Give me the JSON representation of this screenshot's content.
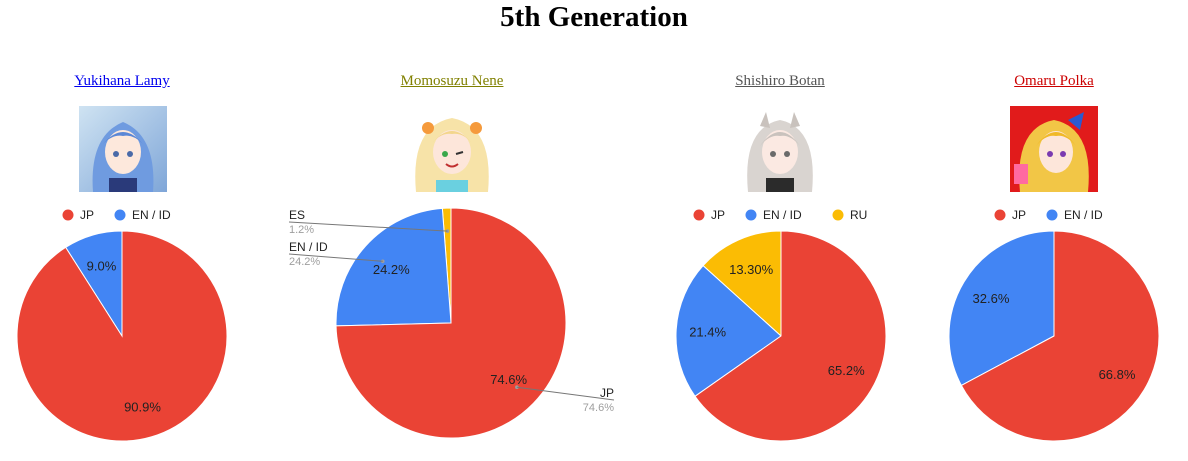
{
  "page": {
    "title": "5th Generation"
  },
  "colors": {
    "JP": "#ea4335",
    "EN / ID": "#4285f4",
    "ES": "#fbbc04",
    "RU": "#fbbc04"
  },
  "members": [
    {
      "name": "Yukihana Lamy",
      "name_color": "#0000ee",
      "avatar_icon": "avatar-icon"
    },
    {
      "name": "Momosuzu Nene",
      "name_color": "#808000",
      "avatar_icon": "avatar-icon"
    },
    {
      "name": "Shishiro Botan",
      "name_color": "#555555",
      "avatar_icon": "avatar-icon"
    },
    {
      "name": "Omaru Polka",
      "name_color": "#cc0000",
      "avatar_icon": "avatar-icon"
    }
  ],
  "chart_data": [
    {
      "type": "pie",
      "legend": "top",
      "labels": [
        "JP",
        "EN / ID"
      ],
      "values": [
        90.9,
        9.0
      ],
      "data_labels": [
        "90.9%",
        "9.0%"
      ]
    },
    {
      "type": "pie",
      "legend": "labeled",
      "labels": [
        "JP",
        "EN / ID",
        "ES"
      ],
      "values": [
        74.6,
        24.2,
        1.2
      ],
      "data_labels": [
        "74.6%",
        "24.2%",
        ""
      ],
      "callout_values": [
        "74.6%",
        "24.2%",
        "1.2%"
      ]
    },
    {
      "type": "pie",
      "legend": "top",
      "labels": [
        "JP",
        "EN / ID",
        "RU"
      ],
      "values": [
        65.2,
        21.4,
        13.3
      ],
      "data_labels": [
        "65.2%",
        "21.4%",
        "13.30%"
      ]
    },
    {
      "type": "pie",
      "legend": "top",
      "labels": [
        "JP",
        "EN / ID"
      ],
      "values": [
        66.8,
        32.6
      ],
      "data_labels": [
        "66.8%",
        "32.6%"
      ]
    }
  ]
}
